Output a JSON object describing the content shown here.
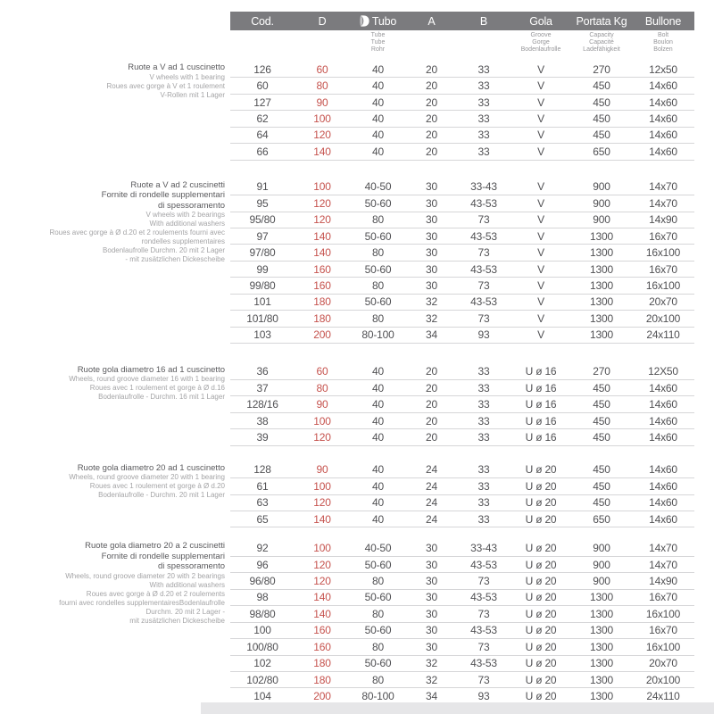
{
  "colors": {
    "header_bg": "#7b7b7e",
    "header_text": "#ffffff",
    "d_value_red": "#c6534e",
    "body_text": "#515154",
    "group_title": "#5a5a5d",
    "group_subtitle": "#a4a4a6",
    "row_line": "#d6d6d8"
  },
  "header": {
    "columns": [
      {
        "key": "cod",
        "label": "Cod."
      },
      {
        "key": "d",
        "label": "D"
      },
      {
        "key": "tubo",
        "label": "Tubo",
        "icon": "tube-icon",
        "sub": [
          "Tube",
          "Tube",
          "Rohr"
        ]
      },
      {
        "key": "a",
        "label": "A"
      },
      {
        "key": "b",
        "label": "B"
      },
      {
        "key": "gola",
        "label": "Gola",
        "sub": [
          "Groove",
          "Gorge",
          "Bodenlaufrolle"
        ]
      },
      {
        "key": "portata",
        "label": "Portata Kg",
        "sub": [
          "Capacity",
          "Capacité",
          "Ladefähigkeit"
        ]
      },
      {
        "key": "bullone",
        "label": "Bullone",
        "sub": [
          "Bolt",
          "Boulon",
          "Bolzen"
        ]
      }
    ]
  },
  "groups": [
    {
      "title_lines": [
        "Ruote a V ad 1 cuscinetto"
      ],
      "sub_lines": [
        "V wheels with 1 bearing",
        "Roues avec gorge à V et 1 roulement",
        "V-Rollen mit 1 Lager"
      ],
      "rows": [
        [
          "126",
          "60",
          "40",
          "20",
          "33",
          "V",
          "270",
          "12x50"
        ],
        [
          "60",
          "80",
          "40",
          "20",
          "33",
          "V",
          "450",
          "14x60"
        ],
        [
          "127",
          "90",
          "40",
          "20",
          "33",
          "V",
          "450",
          "14x60"
        ],
        [
          "62",
          "100",
          "40",
          "20",
          "33",
          "V",
          "450",
          "14x60"
        ],
        [
          "64",
          "120",
          "40",
          "20",
          "33",
          "V",
          "450",
          "14x60"
        ],
        [
          "66",
          "140",
          "40",
          "20",
          "33",
          "V",
          "650",
          "14x60"
        ]
      ]
    },
    {
      "title_lines": [
        "Ruote a V ad 2 cuscinetti",
        "Fornite di rondelle supplementari",
        "di spessoramento"
      ],
      "sub_lines": [
        "V wheels with 2 bearings",
        "With additional washers",
        "Roues avec gorge à Ø d.20 et 2 roulements fourni avec",
        "rondelles supplementaires",
        "Bodenlaufrolle Durchm. 20 mit 2 Lager",
        "- mit zusätzlichen Dickescheibe"
      ],
      "rows": [
        [
          "91",
          "100",
          "40-50",
          "30",
          "33-43",
          "V",
          "900",
          "14x70"
        ],
        [
          "95",
          "120",
          "50-60",
          "30",
          "43-53",
          "V",
          "900",
          "14x70"
        ],
        [
          "95/80",
          "120",
          "80",
          "30",
          "73",
          "V",
          "900",
          "14x90"
        ],
        [
          "97",
          "140",
          "50-60",
          "30",
          "43-53",
          "V",
          "1300",
          "16x70"
        ],
        [
          "97/80",
          "140",
          "80",
          "30",
          "73",
          "V",
          "1300",
          "16x100"
        ],
        [
          "99",
          "160",
          "50-60",
          "30",
          "43-53",
          "V",
          "1300",
          "16x70"
        ],
        [
          "99/80",
          "160",
          "80",
          "30",
          "73",
          "V",
          "1300",
          "16x100"
        ],
        [
          "101",
          "180",
          "50-60",
          "32",
          "43-53",
          "V",
          "1300",
          "20x70"
        ],
        [
          "101/80",
          "180",
          "80",
          "32",
          "73",
          "V",
          "1300",
          "20x100"
        ],
        [
          "103",
          "200",
          "80-100",
          "34",
          "93",
          "V",
          "1300",
          "24x110"
        ]
      ]
    },
    {
      "title_lines": [
        "Ruote gola diametro 16 ad 1 cuscinetto"
      ],
      "sub_lines": [
        "Wheels, round groove diameter 16 with 1 bearing",
        "Roues avec 1 roulement et gorge à Ø d.16",
        "Bodenlaufrolle - Durchm. 16 mit 1 Lager"
      ],
      "rows": [
        [
          "36",
          "60",
          "40",
          "20",
          "33",
          "U ø 16",
          "270",
          "12X50"
        ],
        [
          "37",
          "80",
          "40",
          "20",
          "33",
          "U ø 16",
          "450",
          "14x60"
        ],
        [
          "128/16",
          "90",
          "40",
          "20",
          "33",
          "U ø 16",
          "450",
          "14x60"
        ],
        [
          "38",
          "100",
          "40",
          "20",
          "33",
          "U ø 16",
          "450",
          "14x60"
        ],
        [
          "39",
          "120",
          "40",
          "20",
          "33",
          "U ø 16",
          "450",
          "14x60"
        ]
      ]
    },
    {
      "title_lines": [
        "Ruote gola diametro 20 ad 1 cuscinetto"
      ],
      "sub_lines": [
        "Wheels, round groove diameter 20 with 1 bearing",
        "Roues avec 1 roulement et gorge à Ø d.20",
        "Bodenlaufrolle - Durchm. 20 mit 1 Lager"
      ],
      "rows": [
        [
          "128",
          "90",
          "40",
          "24",
          "33",
          "U ø 20",
          "450",
          "14x60"
        ],
        [
          "61",
          "100",
          "40",
          "24",
          "33",
          "U ø 20",
          "450",
          "14x60"
        ],
        [
          "63",
          "120",
          "40",
          "24",
          "33",
          "U ø 20",
          "450",
          "14x60"
        ],
        [
          "65",
          "140",
          "40",
          "24",
          "33",
          "U ø 20",
          "650",
          "14x60"
        ]
      ]
    },
    {
      "title_lines": [
        "Ruote gola diametro 20 a 2 cuscinetti",
        "Fornite di rondelle supplementari",
        "di spessoramento"
      ],
      "sub_lines": [
        "Wheels, round groove diameter 20 with 2 bearings",
        "With additional washers",
        "Roues avec gorge à Ø d.20 et 2 roulements",
        "fourni avec rondelles supplementairesBodenlaufrolle",
        "Durchm. 20 mit 2 Lager -",
        "mit zusätzlichen Dickescheibe"
      ],
      "rows": [
        [
          "92",
          "100",
          "40-50",
          "30",
          "33-43",
          "U ø 20",
          "900",
          "14x70"
        ],
        [
          "96",
          "120",
          "50-60",
          "30",
          "43-53",
          "U ø 20",
          "900",
          "14x70"
        ],
        [
          "96/80",
          "120",
          "80",
          "30",
          "73",
          "U ø 20",
          "900",
          "14x90"
        ],
        [
          "98",
          "140",
          "50-60",
          "30",
          "43-53",
          "U ø 20",
          "1300",
          "16x70"
        ],
        [
          "98/80",
          "140",
          "80",
          "30",
          "73",
          "U ø 20",
          "1300",
          "16x100"
        ],
        [
          "100",
          "160",
          "50-60",
          "30",
          "43-53",
          "U ø 20",
          "1300",
          "16x70"
        ],
        [
          "100/80",
          "160",
          "80",
          "30",
          "73",
          "U ø 20",
          "1300",
          "16x100"
        ],
        [
          "102",
          "180",
          "50-60",
          "32",
          "43-53",
          "U ø 20",
          "1300",
          "20x70"
        ],
        [
          "102/80",
          "180",
          "80",
          "32",
          "73",
          "U ø 20",
          "1300",
          "20x100"
        ],
        [
          "104",
          "200",
          "80-100",
          "34",
          "93",
          "U ø 20",
          "1300",
          "24x110"
        ]
      ]
    }
  ]
}
